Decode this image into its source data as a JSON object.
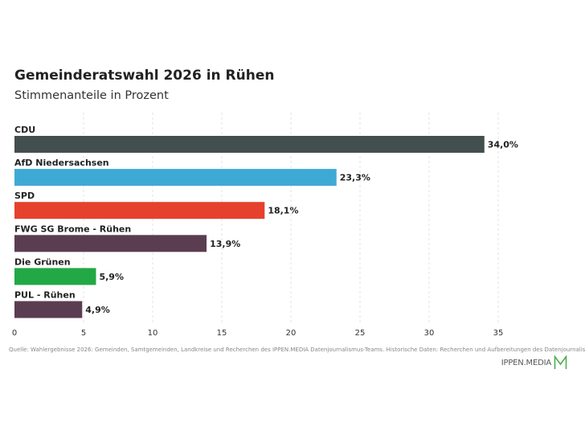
{
  "title": "Gemeinderatswahl 2026 in Rühen",
  "subtitle": "Stimmenanteile in Prozent",
  "source": "Quelle: Wahlergebnisse 2026: Gemeinden, Samtgemeinden, Landkreise und Recherchen des IPPEN.MEDIA Datenjournalismus-Teams. Historische Daten: Recherchen und Aufbereitungen des Datenjournalismus-Teams",
  "logo": {
    "text": "IPPEN.MEDIA",
    "icon": "m-logo-icon",
    "color": "#4caf50"
  },
  "chart_data": {
    "type": "bar",
    "orientation": "horizontal",
    "title": "Gemeinderatswahl 2026 in Rühen",
    "subtitle": "Stimmenanteile in Prozent",
    "categories": [
      "CDU",
      "AfD Niedersachsen",
      "SPD",
      "FWG SG Brome - Rühen",
      "Die Grünen",
      "PUL - Rühen"
    ],
    "values": [
      34.0,
      23.3,
      18.1,
      13.9,
      5.9,
      4.9
    ],
    "value_labels": [
      "34,0%",
      "23,3%",
      "18,1%",
      "13,9%",
      "5,9%",
      "4,9%"
    ],
    "colors": [
      "#434e4f",
      "#3fa9d6",
      "#e5412d",
      "#5b3d51",
      "#23a846",
      "#5b3d51"
    ],
    "xlim": [
      0,
      41
    ],
    "xticks": [
      "0",
      "5",
      "10",
      "15",
      "20",
      "25",
      "30",
      "35"
    ],
    "xtick_values": [
      0,
      5,
      10,
      15,
      20,
      25,
      30,
      35
    ],
    "grid": true
  }
}
